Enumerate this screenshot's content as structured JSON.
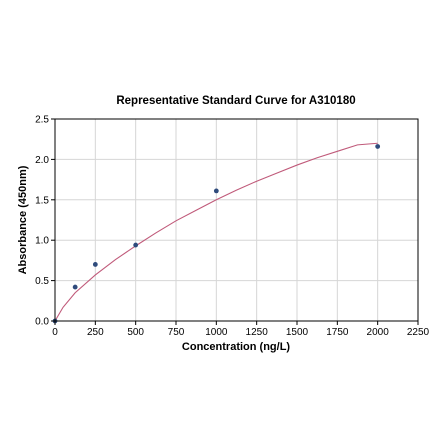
{
  "chart_data": {
    "type": "scatter",
    "title": "Representative Standard Curve for A310180",
    "xlabel": "Concentration (ng/L)",
    "ylabel": "Absorbance (450nm)",
    "xlim": [
      0,
      2250
    ],
    "ylim": [
      0,
      2.5
    ],
    "xticks": [
      0,
      250,
      500,
      750,
      1000,
      1250,
      1500,
      1750,
      2000,
      2250
    ],
    "yticks": [
      0.0,
      0.5,
      1.0,
      1.5,
      2.0,
      2.5
    ],
    "xtick_labels": [
      "0",
      "250",
      "500",
      "750",
      "1000",
      "1250",
      "1500",
      "1750",
      "2000",
      "2250"
    ],
    "ytick_labels": [
      "0.0",
      "0.5",
      "1.0",
      "1.5",
      "2.0",
      "2.5"
    ],
    "grid": true,
    "legend": "none",
    "series": [
      {
        "kind": "points",
        "color": "#2f4b7c",
        "x": [
          0,
          125,
          250,
          500,
          1000,
          2000
        ],
        "y": [
          0.0,
          0.42,
          0.7,
          0.94,
          1.61,
          2.16
        ]
      },
      {
        "kind": "fitted-curve",
        "color": "#c05a7a",
        "x": [
          0,
          50,
          125,
          250,
          375,
          500,
          625,
          750,
          875,
          1000,
          1125,
          1250,
          1375,
          1500,
          1625,
          1750,
          1875,
          2000
        ],
        "y": [
          0.0,
          0.17,
          0.35,
          0.57,
          0.76,
          0.93,
          1.09,
          1.24,
          1.37,
          1.5,
          1.62,
          1.73,
          1.83,
          1.93,
          2.02,
          2.1,
          2.18,
          2.2
        ]
      }
    ]
  }
}
